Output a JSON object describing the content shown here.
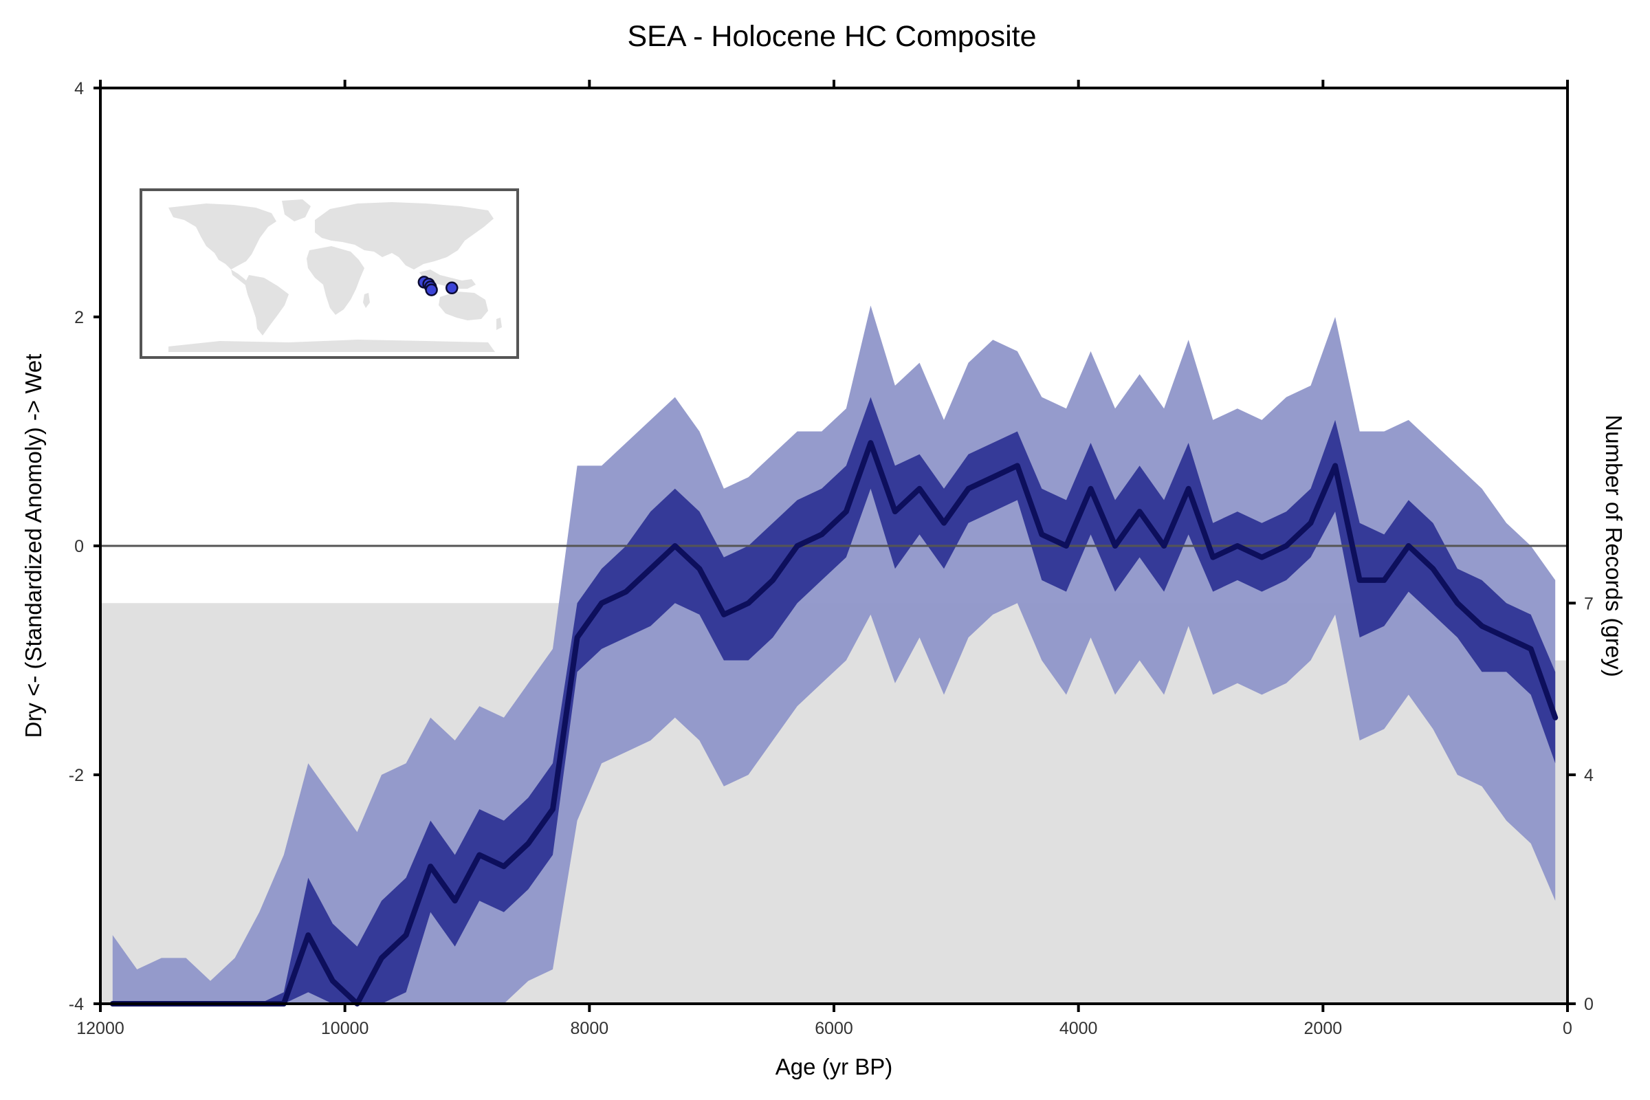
{
  "chart_data": {
    "type": "area",
    "title": "SEA - Holocene HC Composite",
    "xlabel": "Age (yr BP)",
    "ylabel": "Dry <- (Standardized Anomoly) -> Wet",
    "y2label": "Number of Records (grey)",
    "xlim": [
      12000,
      0
    ],
    "ylim": [
      -4,
      4
    ],
    "y2lim": [
      0,
      16
    ],
    "x_ticks": [
      12000,
      10000,
      8000,
      6000,
      4000,
      2000,
      0
    ],
    "y_ticks": [
      -4,
      -2,
      0,
      2,
      4
    ],
    "y2_ticks": [
      0,
      4,
      7
    ],
    "reference_line_y": 0,
    "grid": false,
    "x": [
      11900,
      11700,
      11500,
      11300,
      11100,
      10900,
      10700,
      10500,
      10300,
      10100,
      9900,
      9700,
      9500,
      9300,
      9100,
      8900,
      8700,
      8500,
      8300,
      8100,
      7900,
      7700,
      7500,
      7300,
      7100,
      6900,
      6700,
      6500,
      6300,
      6100,
      5900,
      5700,
      5500,
      5300,
      5100,
      4900,
      4700,
      4500,
      4300,
      4100,
      3900,
      3700,
      3500,
      3300,
      3100,
      2900,
      2700,
      2500,
      2300,
      2100,
      1900,
      1700,
      1500,
      1300,
      1100,
      900,
      700,
      500,
      300,
      100
    ],
    "series": [
      {
        "name": "median",
        "values": [
          -4.6,
          -4.8,
          -4.8,
          -4.8,
          -4.8,
          -4.8,
          -4.6,
          -4.2,
          -3.4,
          -3.8,
          -4.0,
          -3.6,
          -3.4,
          -2.8,
          -3.1,
          -2.7,
          -2.8,
          -2.6,
          -2.3,
          -0.8,
          -0.5,
          -0.4,
          -0.2,
          0.0,
          -0.2,
          -0.6,
          -0.5,
          -0.3,
          0.0,
          0.1,
          0.3,
          0.9,
          0.3,
          0.5,
          0.2,
          0.5,
          0.6,
          0.7,
          0.1,
          0.0,
          0.5,
          0.0,
          0.3,
          0.0,
          0.5,
          -0.1,
          0.0,
          -0.1,
          0.0,
          0.2,
          0.7,
          -0.3,
          -0.3,
          0.0,
          -0.2,
          -0.5,
          -0.7,
          -0.8,
          -0.9,
          -1.5
        ]
      },
      {
        "name": "inner band",
        "upper": [
          -4.3,
          -4.5,
          -4.5,
          -4.5,
          -4.5,
          -4.5,
          -4.3,
          -3.9,
          -2.9,
          -3.3,
          -3.5,
          -3.1,
          -2.9,
          -2.4,
          -2.7,
          -2.3,
          -2.4,
          -2.2,
          -1.9,
          -0.5,
          -0.2,
          0.0,
          0.3,
          0.5,
          0.3,
          -0.1,
          0.0,
          0.2,
          0.4,
          0.5,
          0.7,
          1.3,
          0.7,
          0.8,
          0.5,
          0.8,
          0.9,
          1.0,
          0.5,
          0.4,
          0.9,
          0.4,
          0.7,
          0.4,
          0.9,
          0.2,
          0.3,
          0.2,
          0.3,
          0.5,
          1.1,
          0.2,
          0.1,
          0.4,
          0.2,
          -0.2,
          -0.3,
          -0.5,
          -0.6,
          -1.1
        ],
        "lower": [
          -4.9,
          -5.1,
          -5.1,
          -5.1,
          -5.1,
          -5.1,
          -4.9,
          -4.5,
          -3.9,
          -4.3,
          -4.5,
          -4.1,
          -3.9,
          -3.2,
          -3.5,
          -3.1,
          -3.2,
          -3.0,
          -2.7,
          -1.1,
          -0.9,
          -0.8,
          -0.7,
          -0.5,
          -0.6,
          -1.0,
          -1.0,
          -0.8,
          -0.5,
          -0.3,
          -0.1,
          0.5,
          -0.2,
          0.1,
          -0.2,
          0.2,
          0.3,
          0.4,
          -0.3,
          -0.4,
          0.1,
          -0.4,
          -0.1,
          -0.4,
          0.1,
          -0.4,
          -0.3,
          -0.4,
          -0.3,
          -0.1,
          0.3,
          -0.8,
          -0.7,
          -0.4,
          -0.6,
          -0.8,
          -1.1,
          -1.1,
          -1.3,
          -1.9
        ]
      },
      {
        "name": "outer band",
        "upper": [
          -3.4,
          -3.7,
          -3.6,
          -3.6,
          -3.8,
          -3.6,
          -3.2,
          -2.7,
          -1.9,
          -2.2,
          -2.5,
          -2.0,
          -1.9,
          -1.5,
          -1.7,
          -1.4,
          -1.5,
          -1.2,
          -0.9,
          0.7,
          0.7,
          0.9,
          1.1,
          1.3,
          1.0,
          0.5,
          0.6,
          0.8,
          1.0,
          1.0,
          1.2,
          2.1,
          1.4,
          1.6,
          1.1,
          1.6,
          1.8,
          1.7,
          1.3,
          1.2,
          1.7,
          1.2,
          1.5,
          1.2,
          1.8,
          1.1,
          1.2,
          1.1,
          1.3,
          1.4,
          2.0,
          1.0,
          1.0,
          1.1,
          0.9,
          0.7,
          0.5,
          0.2,
          0.0,
          -0.3
        ],
        "lower": [
          -5.8,
          -5.9,
          -6.0,
          -6.0,
          -5.8,
          -6.0,
          -5.6,
          -5.7,
          -4.9,
          -5.4,
          -5.5,
          -5.2,
          -4.9,
          -4.1,
          -4.5,
          -4.0,
          -4.1,
          -3.8,
          -3.7,
          -2.4,
          -1.9,
          -1.8,
          -1.7,
          -1.5,
          -1.7,
          -2.1,
          -2.0,
          -1.7,
          -1.4,
          -1.2,
          -1.0,
          -0.6,
          -1.2,
          -0.8,
          -1.3,
          -0.8,
          -0.6,
          -0.5,
          -1.0,
          -1.3,
          -0.8,
          -1.3,
          -1.0,
          -1.3,
          -0.7,
          -1.3,
          -1.2,
          -1.3,
          -1.2,
          -1.0,
          -0.6,
          -1.7,
          -1.6,
          -1.3,
          -1.6,
          -2.0,
          -2.1,
          -2.4,
          -2.6,
          -3.1
        ]
      },
      {
        "name": "record count",
        "x": [
          12000,
          8300,
          8250,
          400,
          350,
          0
        ],
        "values": [
          7,
          7,
          7,
          7,
          6,
          6
        ]
      }
    ],
    "inset_map": {
      "sites": [
        {
          "lon": 96,
          "lat": 4
        },
        {
          "lon": 101,
          "lat": 2
        },
        {
          "lon": 103,
          "lat": -1
        },
        {
          "lon": 104,
          "lat": -4
        },
        {
          "lon": 126,
          "lat": -2
        }
      ]
    },
    "colors": {
      "outer_band": "#8f96c9",
      "inner_band": "#2f3595",
      "median_line": "#0d0f5c",
      "record_count": "#e0e0e0",
      "zero_line": "#555555",
      "site_fill": "#3b43d6",
      "land": "#e2e2e2"
    }
  }
}
